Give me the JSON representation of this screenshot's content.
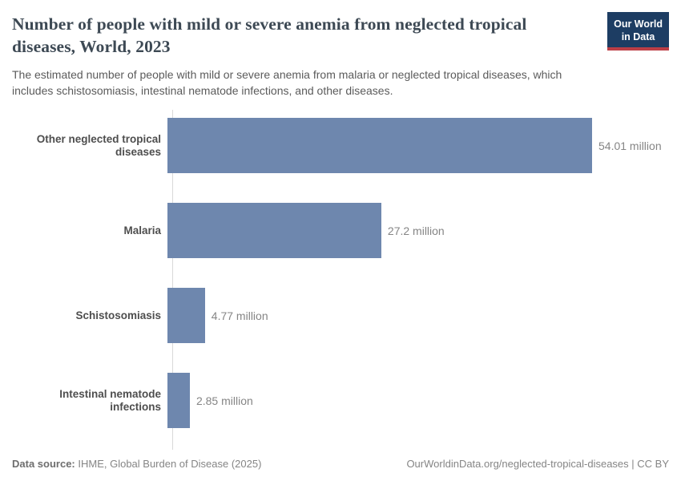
{
  "header": {
    "title": "Number of people with mild or severe anemia from neglected tropical diseases, World, 2023",
    "subtitle": "The estimated number of people with mild or severe anemia from malaria or neglected tropical diseases, which includes schistosomiasis, intestinal nematode infections, and other diseases.",
    "logo": {
      "line1": "Our World",
      "line2": "in Data"
    }
  },
  "chart_data": {
    "type": "bar",
    "orientation": "horizontal",
    "title": "Number of people with mild or severe anemia from neglected tropical diseases, World, 2023",
    "categories": [
      "Other neglected tropical diseases",
      "Malaria",
      "Schistosomiasis",
      "Intestinal nematode infections"
    ],
    "values": [
      54.01,
      27.2,
      4.77,
      2.85
    ],
    "value_labels": [
      "54.01 million",
      "27.2 million",
      "4.77 million",
      "2.85 million"
    ],
    "unit": "million",
    "xlim": [
      0,
      54.01
    ],
    "grid": false,
    "legend": "none",
    "bar_color": "#6e87ae"
  },
  "footer": {
    "datasource_label": "Data source:",
    "datasource_value": " IHME, Global Burden of Disease (2025)",
    "attribution": "OurWorldinData.org/neglected-tropical-diseases | CC BY"
  },
  "colors": {
    "bar": "#6e87ae",
    "axis_line": "#d9d9d9",
    "title_text": "#3d4954",
    "subtitle_text": "#5b5b5b",
    "category_label": "#4e4e4e",
    "value_label": "#858585",
    "logo_background": "#1d3d63",
    "logo_accent": "#bc3e46"
  }
}
